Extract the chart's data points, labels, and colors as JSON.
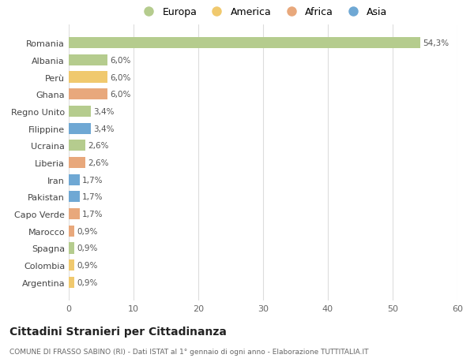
{
  "categories": [
    "Romania",
    "Albania",
    "Perù",
    "Ghana",
    "Regno Unito",
    "Filippine",
    "Ucraina",
    "Liberia",
    "Iran",
    "Pakistan",
    "Capo Verde",
    "Marocco",
    "Spagna",
    "Colombia",
    "Argentina"
  ],
  "values": [
    54.3,
    6.0,
    6.0,
    6.0,
    3.4,
    3.4,
    2.6,
    2.6,
    1.7,
    1.7,
    1.7,
    0.9,
    0.9,
    0.9,
    0.9
  ],
  "labels": [
    "54,3%",
    "6,0%",
    "6,0%",
    "6,0%",
    "3,4%",
    "3,4%",
    "2,6%",
    "2,6%",
    "1,7%",
    "1,7%",
    "1,7%",
    "0,9%",
    "0,9%",
    "0,9%",
    "0,9%"
  ],
  "continent": [
    "Europa",
    "Europa",
    "America",
    "Africa",
    "Europa",
    "Asia",
    "Europa",
    "Africa",
    "Asia",
    "Asia",
    "Africa",
    "Africa",
    "Europa",
    "America",
    "America"
  ],
  "colors": {
    "Europa": "#b5cc8e",
    "America": "#f0c96e",
    "Africa": "#e8a87c",
    "Asia": "#6fa8d4"
  },
  "title": "Cittadini Stranieri per Cittadinanza",
  "subtitle": "COMUNE DI FRASSO SABINO (RI) - Dati ISTAT al 1° gennaio di ogni anno - Elaborazione TUTTITALIA.IT",
  "xlim": [
    0,
    60
  ],
  "xticks": [
    0,
    10,
    20,
    30,
    40,
    50,
    60
  ],
  "background_color": "#ffffff",
  "grid_color": "#dddddd",
  "bar_height": 0.65,
  "legend_order": [
    "Europa",
    "America",
    "Africa",
    "Asia"
  ]
}
